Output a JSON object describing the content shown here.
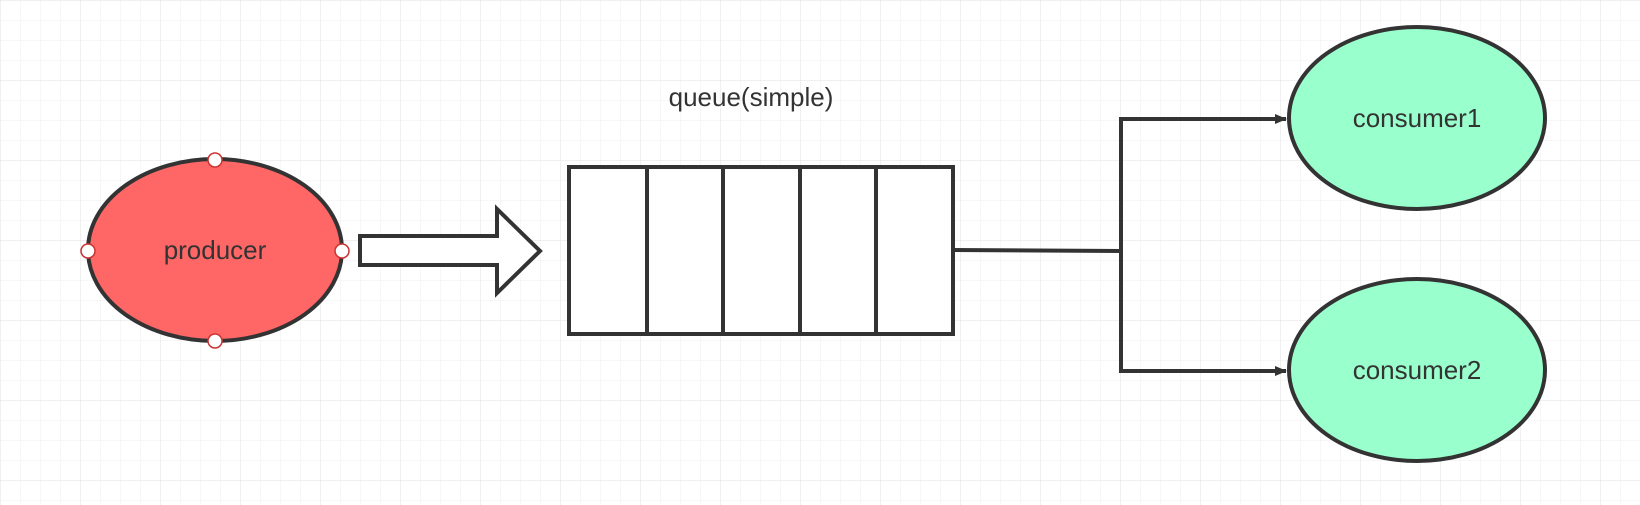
{
  "diagram": {
    "queue_label": "queue(simple)",
    "producer_label": "producer",
    "consumers": [
      "consumer1",
      "consumer2"
    ]
  },
  "colors": {
    "grid_fine": "#efefef",
    "grid_major": "#e2e2e2",
    "stroke": "#333333",
    "producer_fill": "#ff6666",
    "consumer_fill": "#99ffcc",
    "queue_fill": "#ffffff",
    "text": "#333333"
  }
}
